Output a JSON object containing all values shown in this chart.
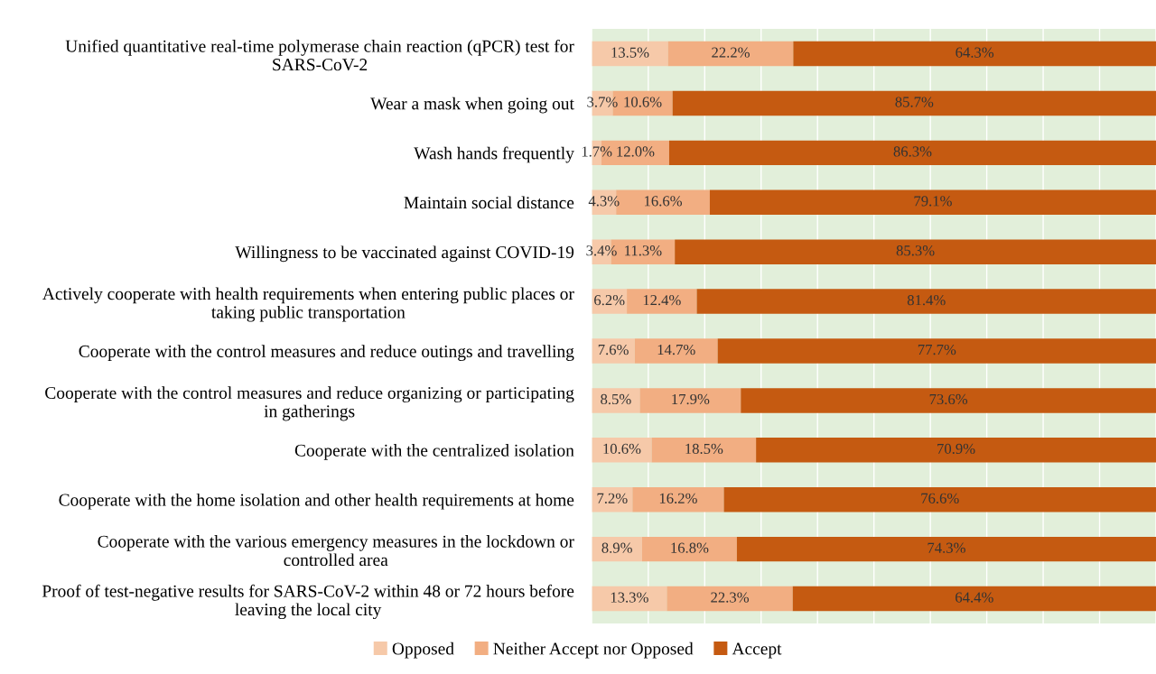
{
  "chart_data": {
    "type": "bar",
    "orientation": "horizontal",
    "stacked": true,
    "categories": [
      "Unified quantitative real-time polymerase chain reaction (qPCR) test for\nSARS-CoV-2",
      "Wear a mask when going out",
      "Wash hands frequently",
      "Maintain social distance",
      "Willingness to be vaccinated against COVID-19",
      "Actively cooperate with health requirements when entering public places or\ntaking public transportation",
      "Cooperate with the control measures and reduce outings and travelling",
      "Cooperate with the control measures and reduce organizing or participating\nin gatherings",
      "Cooperate with the centralized isolation",
      "Cooperate with the home isolation and other health requirements at home",
      "Cooperate with the various emergency measures in the lockdown or\ncontrolled area",
      "Proof of test-negative results for SARS-CoV-2 within 48 or 72 hours before\nleaving the local city"
    ],
    "series": [
      {
        "name": "Opposed",
        "color": "#f6c9a9",
        "values": [
          13.5,
          3.7,
          1.7,
          4.3,
          3.4,
          6.2,
          7.6,
          8.5,
          10.6,
          7.2,
          8.9,
          13.3
        ],
        "value_labels": [
          "13.5%",
          "3.7%",
          "1.7%",
          "4.3%",
          "3.4%",
          "6.2%",
          "7.6%",
          "8.5%",
          "10.6%",
          "7.2%",
          "8.9%",
          "13.3%"
        ]
      },
      {
        "name": "Neither Accept nor Opposed",
        "color": "#f2ae82",
        "values": [
          22.2,
          10.6,
          12.0,
          16.6,
          11.3,
          12.4,
          14.7,
          17.9,
          18.5,
          16.2,
          16.8,
          22.3
        ],
        "value_labels": [
          "22.2%",
          "10.6%",
          "12.0%",
          "16.6%",
          "11.3%",
          "12.4%",
          "14.7%",
          "17.9%",
          "18.5%",
          "16.2%",
          "16.8%",
          "22.3%"
        ]
      },
      {
        "name": "Accept",
        "color": "#c55a11",
        "values": [
          64.3,
          85.7,
          86.3,
          79.1,
          85.3,
          81.4,
          77.7,
          73.6,
          70.9,
          76.6,
          74.3,
          64.4
        ],
        "value_labels": [
          "64.3%",
          "85.7%",
          "86.3%",
          "79.1%",
          "85.3%",
          "81.4%",
          "77.7%",
          "73.6%",
          "70.9%",
          "76.6%",
          "74.3%",
          "64.4%"
        ]
      }
    ],
    "xlim": [
      0,
      100
    ],
    "xticks": [
      {
        "value": 0,
        "label": null
      },
      {
        "value": 10,
        "label": null
      },
      {
        "value": 20,
        "label": null
      },
      {
        "value": 30,
        "label": null
      },
      {
        "value": 40,
        "label": null
      },
      {
        "value": 50,
        "label": null
      },
      {
        "value": 60,
        "label": null
      },
      {
        "value": 70,
        "label": null
      },
      {
        "value": 80,
        "label": null
      },
      {
        "value": 90,
        "label": null
      },
      {
        "value": 100,
        "label": null
      }
    ],
    "tick_labels": "y",
    "grid": "x",
    "legend": "bottom"
  }
}
